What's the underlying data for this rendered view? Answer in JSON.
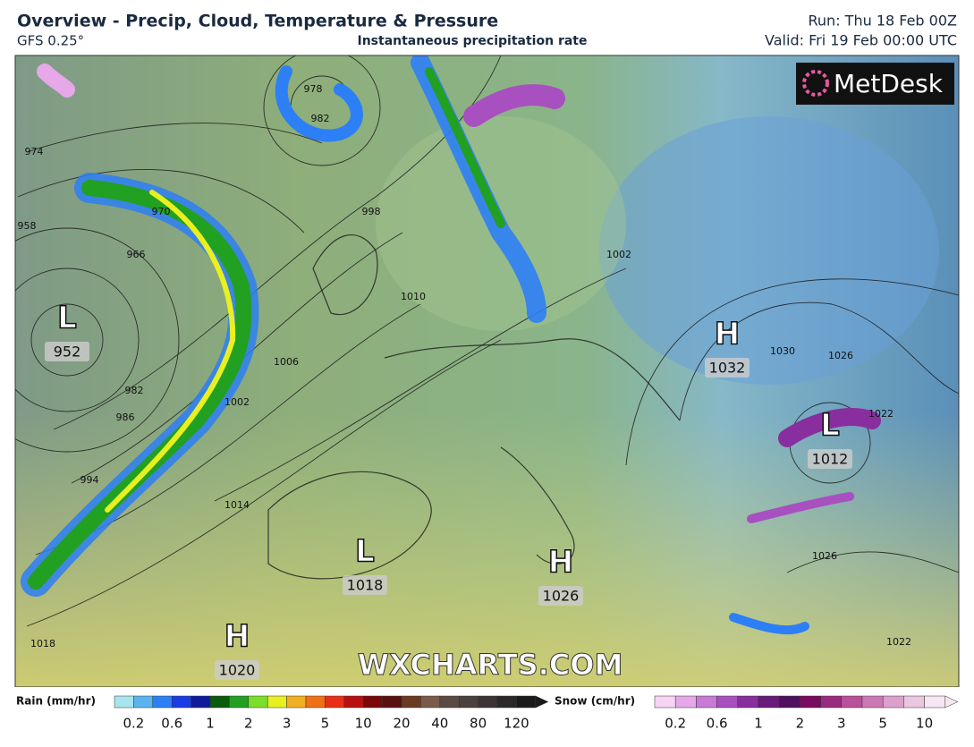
{
  "header": {
    "title": "Overview - Precip, Cloud, Temperature & Pressure",
    "model": "GFS 0.25°",
    "subtitle": "Instantaneous precipitation rate",
    "run": "Run: Thu 18 Feb 00Z",
    "valid": "Valid: Fri 19 Feb 00:00 UTC"
  },
  "logo": "MetDesk",
  "watermark": "WXCHARTS.COM",
  "pressure_centers": [
    {
      "letter": "L",
      "value": "952"
    },
    {
      "letter": "H",
      "value": "1032"
    },
    {
      "letter": "L",
      "value": "1012"
    },
    {
      "letter": "L",
      "value": "1018"
    },
    {
      "letter": "H",
      "value": "1026"
    },
    {
      "letter": "H",
      "value": "1020"
    }
  ],
  "isobar_labels": [
    "974",
    "958",
    "970",
    "966",
    "978",
    "982",
    "998",
    "1010",
    "1006",
    "1002",
    "982",
    "986",
    "994",
    "1014",
    "1018",
    "1002",
    "1030",
    "1026",
    "1022",
    "1026",
    "1022"
  ],
  "legend": {
    "rain": {
      "title": "Rain (mm/hr)",
      "ticks": [
        "0.2",
        "0.6",
        "1",
        "2",
        "3",
        "5",
        "10",
        "20",
        "40",
        "80",
        "120"
      ],
      "colors": [
        "#a8e4f0",
        "#5ab4f0",
        "#2d7ff5",
        "#1a3ce6",
        "#101a9a",
        "#0a5a10",
        "#22a022",
        "#7ade2a",
        "#e8f020",
        "#f0b020",
        "#f07018",
        "#e83018",
        "#b81010",
        "#7a0808",
        "#5a1010",
        "#6a3a22",
        "#7a5a48",
        "#5a4a44",
        "#4a4040",
        "#3a3434",
        "#2a2828",
        "#1a1a1a"
      ]
    },
    "snow": {
      "title": "Snow (cm/hr)",
      "ticks": [
        "0.2",
        "0.6",
        "1",
        "2",
        "3",
        "5",
        "10"
      ],
      "colors": [
        "#f6d4f4",
        "#e6a8e8",
        "#c87ad6",
        "#a850c0",
        "#882e9e",
        "#6a1a7a",
        "#501060",
        "#7a0a62",
        "#9a2a80",
        "#b8509a",
        "#cc78b4",
        "#dca0cc",
        "#eac6e0",
        "#f6e6f2"
      ]
    }
  }
}
